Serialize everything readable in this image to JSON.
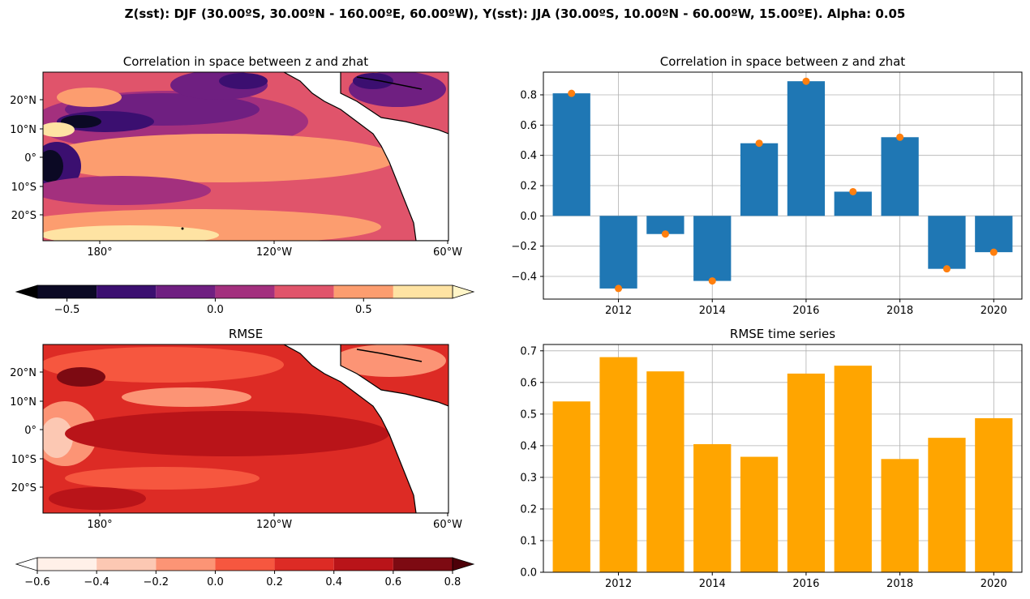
{
  "figure": {
    "suptitle": "Z(sst): DJF (30.00ºS, 30.00ºN - 160.00ºE, 60.00ºW), Y(sst): JJA (30.00ºS, 10.00ºN - 60.00ºW, 15.00ºE). Alpha: 0.05"
  },
  "chart_data": [
    {
      "type": "heatmap",
      "title": "Correlation in space between z and zhat",
      "lon_ticks": [
        "180°",
        "120°W",
        "60°W"
      ],
      "lat_ticks": [
        "20°N",
        "10°N",
        "0°",
        "10°S",
        "20°S"
      ],
      "colorbar": {
        "colormap": "magma",
        "levels": [
          -0.6,
          -0.4,
          -0.2,
          0.0,
          0.2,
          0.4,
          0.6,
          0.8
        ],
        "colors": [
          "#0b0924",
          "#3b0f70",
          "#6f1f81",
          "#a3307e",
          "#e0546b",
          "#fc9d6f",
          "#fee3a3"
        ],
        "extend": "both",
        "tick_labels": [
          "−0.5",
          "0.0",
          "0.5"
        ]
      }
    },
    {
      "type": "bar",
      "title": "Correlation in space between z and zhat",
      "x": [
        2011,
        2012,
        2013,
        2014,
        2015,
        2016,
        2017,
        2018,
        2019,
        2020
      ],
      "values": [
        0.81,
        -0.48,
        -0.12,
        -0.43,
        0.48,
        0.89,
        0.16,
        0.52,
        -0.35,
        -0.24
      ],
      "markers": [
        0.81,
        -0.48,
        -0.12,
        -0.43,
        0.48,
        0.89,
        0.16,
        0.52,
        -0.35,
        -0.24
      ],
      "xticks": [
        "2012",
        "2014",
        "2016",
        "2018",
        "2020"
      ],
      "yticks": [
        "−0.4",
        "−0.2",
        "0.0",
        "0.2",
        "0.4",
        "0.6",
        "0.8"
      ],
      "ylim": [
        -0.55,
        0.95
      ],
      "bar_color": "#1f77b4",
      "marker_color": "#ff7f0e",
      "grid": true
    },
    {
      "type": "heatmap",
      "title": "RMSE",
      "lon_ticks": [
        "180°",
        "120°W",
        "60°W"
      ],
      "lat_ticks": [
        "20°N",
        "10°N",
        "0°",
        "10°S",
        "20°S"
      ],
      "colorbar": {
        "colormap": "Reds",
        "levels": [
          -0.6,
          -0.4,
          -0.2,
          0.0,
          0.2,
          0.4,
          0.6,
          0.8
        ],
        "colors": [
          "#fff0e8",
          "#fcc8b3",
          "#fc9475",
          "#f6573f",
          "#dd2b25",
          "#b91419",
          "#7d0a12"
        ],
        "extend": "both",
        "tick_labels": [
          "−0.6",
          "−0.4",
          "−0.2",
          "0.0",
          "0.2",
          "0.4",
          "0.6",
          "0.8"
        ]
      }
    },
    {
      "type": "bar",
      "title": "RMSE time series",
      "x": [
        2011,
        2012,
        2013,
        2014,
        2015,
        2016,
        2017,
        2018,
        2019,
        2020
      ],
      "values": [
        0.54,
        0.68,
        0.635,
        0.405,
        0.365,
        0.628,
        0.653,
        0.358,
        0.425,
        0.487
      ],
      "xticks": [
        "2012",
        "2014",
        "2016",
        "2018",
        "2020"
      ],
      "yticks": [
        "0.0",
        "0.1",
        "0.2",
        "0.3",
        "0.4",
        "0.5",
        "0.6",
        "0.7"
      ],
      "ylim": [
        0,
        0.72
      ],
      "bar_color": "#ffa500",
      "grid": true
    }
  ]
}
